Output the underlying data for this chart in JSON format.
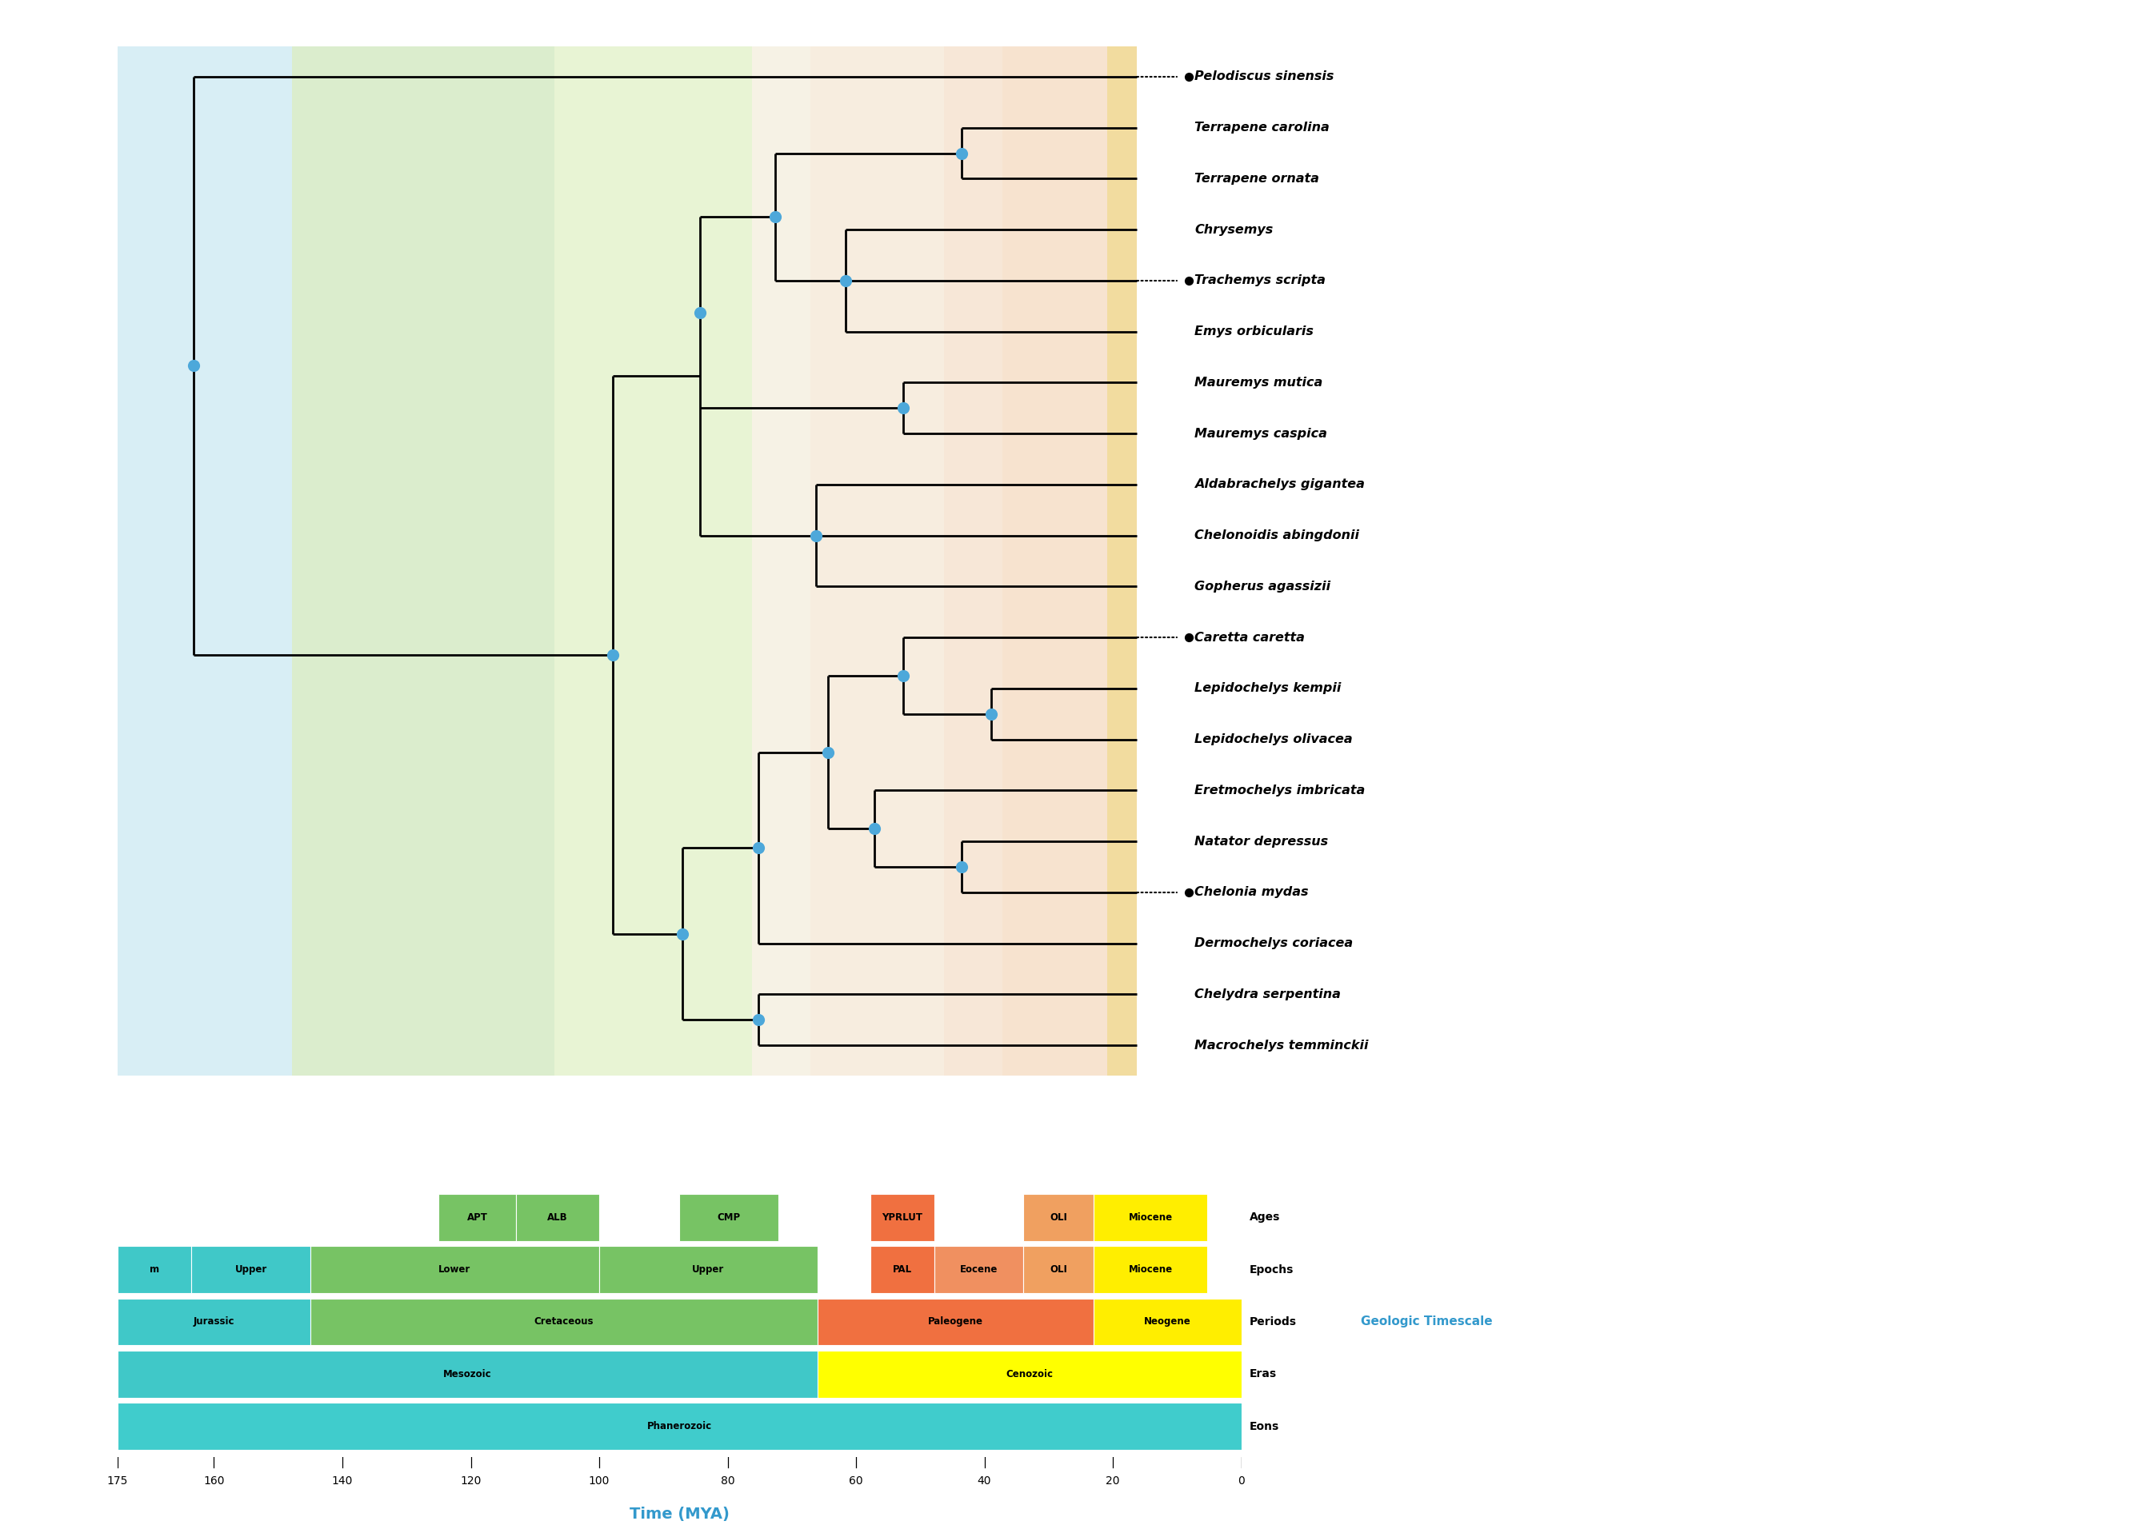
{
  "taxa": [
    "Pelodiscus sinensis",
    "Terrapene carolina",
    "Terrapene ornata",
    "Chrysemys",
    "Trachemys scripta",
    "Emys orbicularis",
    "Mauremys mutica",
    "Mauremys caspica",
    "Aldabrachelys gigantea",
    "Chelonoidis abingdonii",
    "Gopherus agassizii",
    "Caretta caretta",
    "Lepidochelys kempii",
    "Lepidochelys olivacea",
    "Eretmochelys imbricata",
    "Natator depressus",
    "Chelonia mydas",
    "Dermochelys coriacea",
    "Chelydra serpentina",
    "Macrochelys temminckii"
  ],
  "dotted_taxa": {
    "Pelodiscus sinensis": 1,
    "Trachemys scripta": 5,
    "Caretta caretta": 12,
    "Chelonia mydas": 17
  },
  "background_bands": [
    {
      "xmin": 175,
      "xmax": 145,
      "color": "#c8e8f2",
      "alpha": 0.7
    },
    {
      "xmin": 145,
      "xmax": 100,
      "color": "#b0d890",
      "alpha": 0.45
    },
    {
      "xmin": 100,
      "xmax": 66,
      "color": "#cce8a0",
      "alpha": 0.45
    },
    {
      "xmin": 66,
      "xmax": 56,
      "color": "#f0e8d0",
      "alpha": 0.55
    },
    {
      "xmin": 56,
      "xmax": 33,
      "color": "#f0dcc0",
      "alpha": 0.5
    },
    {
      "xmin": 33,
      "xmax": 23,
      "color": "#f0d0b0",
      "alpha": 0.5
    },
    {
      "xmin": 23,
      "xmax": 5,
      "color": "#f0c8a0",
      "alpha": 0.5
    },
    {
      "xmin": 5,
      "xmax": 0,
      "color": "#e8c050",
      "alpha": 0.55
    }
  ],
  "tree_nodes": {
    "t_terrapene": 30,
    "t_chr_group": 50,
    "t_emyd": 62,
    "t_mauremys": 40,
    "t_testudinidae": 55,
    "t_upper": 75,
    "t_lepido": 25,
    "t_caretta_n": 40,
    "t_chelonia_n": 30,
    "t_eretch": 45,
    "t_cheloniidae": 53,
    "t_sea_all": 65,
    "t_chelydra": 65,
    "t_lower": 78,
    "t_crypto": 90,
    "t_root": 162
  },
  "node_color": "#4da8da",
  "line_color": "black",
  "line_width": 2.0,
  "geo_rows": [
    {
      "label": "Ages",
      "segments": [
        {
          "xmin": 125,
          "xmax": 113,
          "label": "APT",
          "color": "#77c364"
        },
        {
          "xmin": 113,
          "xmax": 100,
          "label": "ALB",
          "color": "#77c364"
        },
        {
          "xmin": 87.5,
          "xmax": 72.1,
          "label": "CMP",
          "color": "#77c364"
        },
        {
          "xmin": 57.8,
          "xmax": 47.8,
          "label": "YPRLUT",
          "color": "#f07040"
        },
        {
          "xmin": 33.9,
          "xmax": 23.0,
          "label": "OLI",
          "color": "#f0a060"
        },
        {
          "xmin": 23.0,
          "xmax": 5.3,
          "label": "Miocene",
          "color": "#ffee00"
        }
      ]
    },
    {
      "label": "Epochs",
      "segments": [
        {
          "xmin": 175,
          "xmax": 163.5,
          "label": "m",
          "color": "#40c8c8"
        },
        {
          "xmin": 163.5,
          "xmax": 145,
          "label": "Upper",
          "color": "#40c8c8"
        },
        {
          "xmin": 145,
          "xmax": 100,
          "label": "Lower",
          "color": "#77c364"
        },
        {
          "xmin": 100,
          "xmax": 66,
          "label": "Upper",
          "color": "#77c364"
        },
        {
          "xmin": 57.8,
          "xmax": 47.8,
          "label": "PAL",
          "color": "#f07040"
        },
        {
          "xmin": 47.8,
          "xmax": 33.9,
          "label": "Eocene",
          "color": "#f09060"
        },
        {
          "xmin": 33.9,
          "xmax": 23.0,
          "label": "OLI",
          "color": "#f0a060"
        },
        {
          "xmin": 23.0,
          "xmax": 5.3,
          "label": "Miocene",
          "color": "#ffee00"
        }
      ]
    },
    {
      "label": "Periods",
      "segments": [
        {
          "xmin": 175,
          "xmax": 145,
          "label": "Jurassic",
          "color": "#40c8c8"
        },
        {
          "xmin": 145,
          "xmax": 66,
          "label": "Cretaceous",
          "color": "#77c364"
        },
        {
          "xmin": 66,
          "xmax": 23,
          "label": "Paleogene",
          "color": "#f07040"
        },
        {
          "xmin": 23,
          "xmax": 0,
          "label": "Neogene",
          "color": "#ffee00"
        }
      ]
    },
    {
      "label": "Eras",
      "segments": [
        {
          "xmin": 175,
          "xmax": 66,
          "label": "Mesozoic",
          "color": "#40c8c8"
        },
        {
          "xmin": 66,
          "xmax": 0,
          "label": "Cenozoic",
          "color": "#ffff00"
        }
      ]
    },
    {
      "label": "Eons",
      "segments": [
        {
          "xmin": 175,
          "xmax": 0,
          "label": "Phanerozoic",
          "color": "#40cccc"
        }
      ]
    }
  ],
  "time_ticks": [
    0,
    20,
    40,
    60,
    80,
    100,
    120,
    140,
    160,
    175
  ],
  "title_color": "#3399cc",
  "geologic_label_color": "#3399cc"
}
